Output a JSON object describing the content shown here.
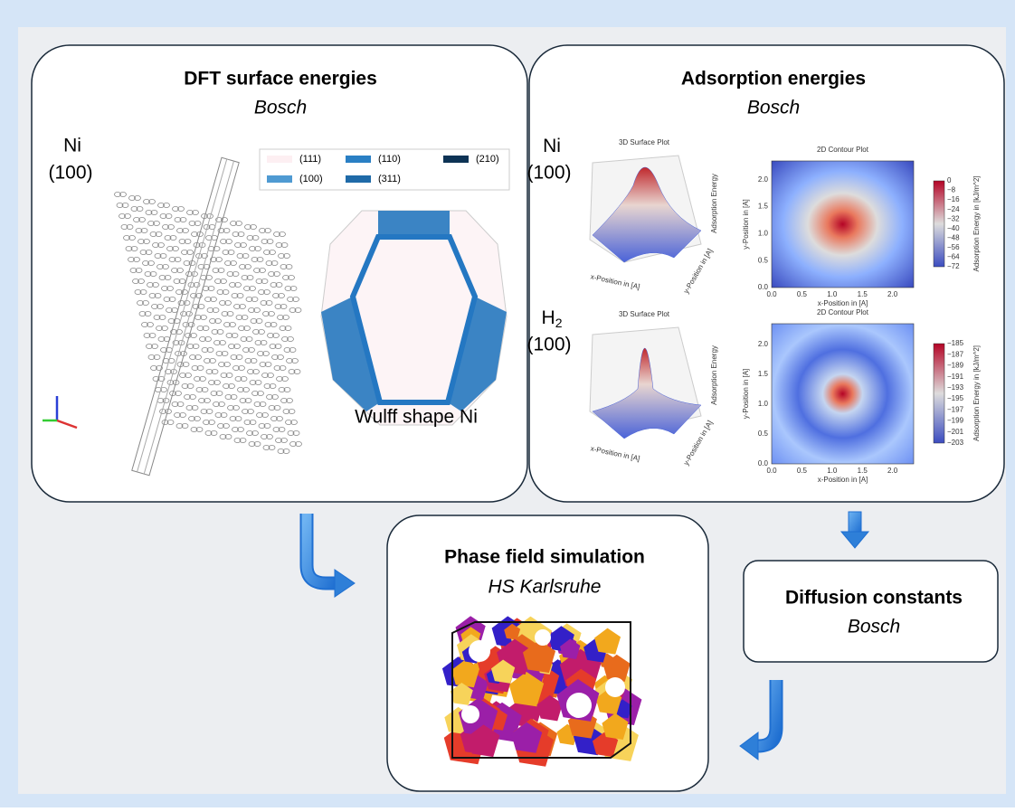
{
  "dft": {
    "title": "DFT surface energies",
    "source": "Bosch",
    "species": "Ni",
    "facet": "(100)",
    "legend": [
      "(111)",
      "(110)",
      "(210)",
      "(100)",
      "(311)"
    ],
    "wulff_caption": "Wulff shape Ni"
  },
  "adsorption": {
    "title": "Adsorption energies",
    "source": "Bosch",
    "rows": [
      {
        "species": "Ni",
        "species_sub": "",
        "facet": "(100)",
        "surface_title": "3D Surface Plot",
        "contour_title": "2D Contour Plot",
        "surface_x_label": "x-Position in [A]",
        "surface_y_label": "y-Position in [A]",
        "surface_z_label": "Adsorption Energy",
        "contour_x_label": "x-Position in [A]",
        "contour_y_label": "y-Position in [A]",
        "colorbar_label": "Adsorption Energy in [kJ/m^2]",
        "axis_ticks": [
          "0.0",
          "0.5",
          "1.0",
          "1.5",
          "2.0"
        ],
        "colorbar_ticks": [
          "0",
          "−8",
          "−16",
          "−24",
          "−32",
          "−40",
          "−48",
          "−56",
          "−64",
          "−72"
        ]
      },
      {
        "species": "H",
        "species_sub": "2",
        "facet": "(100)",
        "surface_title": "3D Surface Plot",
        "contour_title": "2D Contour Plot",
        "surface_x_label": "x-Position in [A]",
        "surface_y_label": "y-Position in [A]",
        "surface_z_label": "Adsorption Energy",
        "contour_x_label": "x-Position in [A]",
        "contour_y_label": "y-Position in [A]",
        "colorbar_label": "Adsorption Energy in [kJ/m^2]",
        "axis_ticks": [
          "0.0",
          "0.5",
          "1.0",
          "1.5",
          "2.0"
        ],
        "colorbar_ticks": [
          "−185",
          "−187",
          "−189",
          "−191",
          "−193",
          "−195",
          "−197",
          "−199",
          "−201",
          "−203"
        ]
      }
    ]
  },
  "phase_field": {
    "title": "Phase field simulation",
    "source": "HS Karlsruhe"
  },
  "diffusion": {
    "title": "Diffusion constants",
    "source": "Bosch"
  }
}
